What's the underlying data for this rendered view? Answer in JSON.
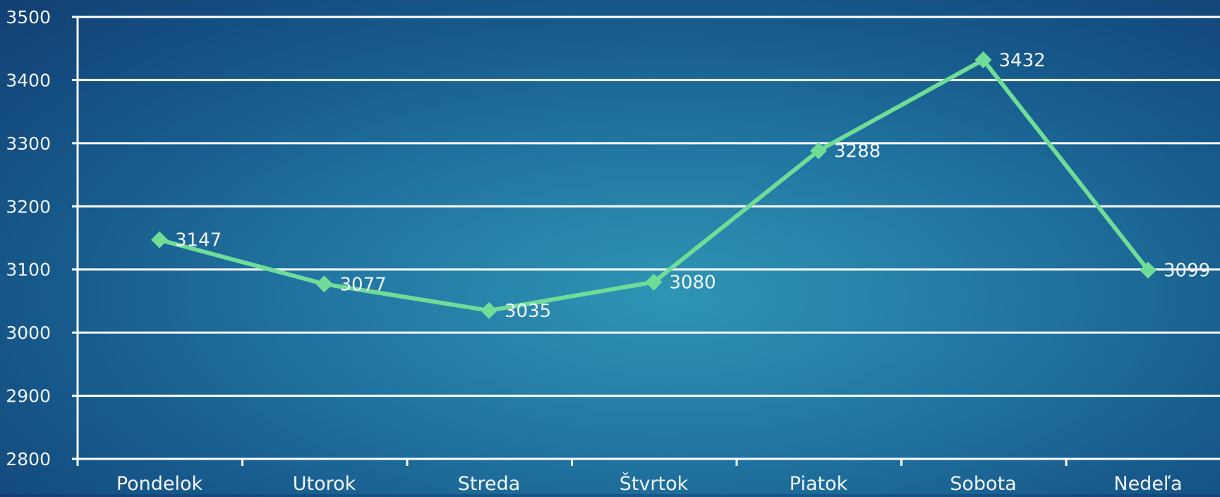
{
  "chart_data": {
    "type": "line",
    "categories": [
      "Pondelok",
      "Utorok",
      "Streda",
      "Štvrtok",
      "Piatok",
      "Sobota",
      "Nedeľa"
    ],
    "series": [
      {
        "values": [
          3147,
          3077,
          3035,
          3080,
          3288,
          3432,
          3099
        ]
      }
    ],
    "data_labels": [
      "3147",
      "3077",
      "3035",
      "3080",
      "3288",
      "3432",
      "3099"
    ],
    "y_ticks": [
      "2800",
      "2900",
      "3000",
      "3100",
      "3200",
      "3300",
      "3400",
      "3500"
    ],
    "ylim": [
      2800,
      3500
    ],
    "grid": true,
    "legend": "none",
    "colors": {
      "series": "#6fdc97",
      "grid": "#ffffff",
      "text": "#f2f6fa"
    }
  }
}
